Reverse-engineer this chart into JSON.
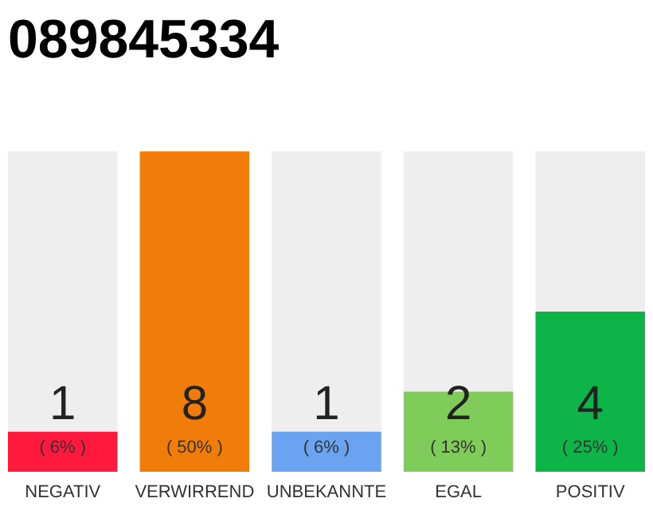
{
  "chart_data": {
    "type": "bar",
    "title": "089845334",
    "categories": [
      "NEGATIV",
      "VERWIRREND",
      "UNBEKANNTE",
      "EGAL",
      "POSITIV"
    ],
    "values": [
      1,
      8,
      1,
      2,
      4
    ],
    "colors": [
      "#ff1a3d",
      "#f07d0a",
      "#6aa4f0",
      "#80cc5a",
      "#0db548"
    ],
    "ylim": [
      0,
      8
    ],
    "tick_labels": "x",
    "data_labels": true,
    "annotations": [
      {
        "text": "( 6% )",
        "x": "NEGATIV",
        "y": 0
      },
      {
        "text": "( 50% )",
        "x": "VERWIRREND",
        "y": 0
      },
      {
        "text": "( 6% )",
        "x": "UNBEKANNTE",
        "y": 0
      },
      {
        "text": "( 13% )",
        "x": "EGAL",
        "y": 0
      },
      {
        "text": "( 25% )",
        "x": "POSITIV",
        "y": 0
      }
    ]
  }
}
